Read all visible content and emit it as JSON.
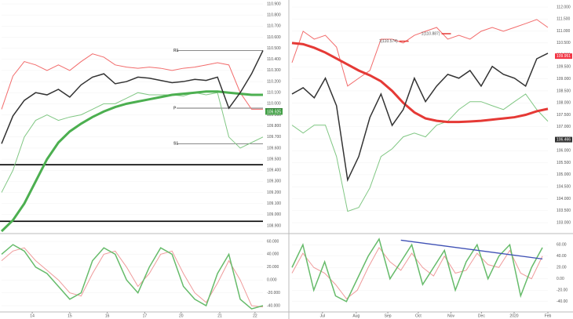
{
  "chart_data": [
    {
      "type": "line",
      "x": [
        0,
        1,
        2,
        3,
        4,
        5,
        6,
        7,
        8,
        9,
        10,
        11,
        12,
        13,
        14,
        15,
        16,
        17,
        18,
        19,
        20,
        21,
        22,
        23
      ],
      "xlim": [
        0,
        23
      ],
      "ylim": [
        108.9,
        110.9
      ],
      "yticks": [
        {
          "value": 110.9,
          "label": "110.900"
        },
        {
          "value": 110.8,
          "label": "110.800"
        },
        {
          "value": 110.7,
          "label": "110.700"
        },
        {
          "value": 110.6,
          "label": "110.600"
        },
        {
          "value": 110.5,
          "label": "110.500"
        },
        {
          "value": 110.4,
          "label": "110.400"
        },
        {
          "value": 110.3,
          "label": "110.300"
        },
        {
          "value": 110.2,
          "label": "110.200"
        },
        {
          "value": 110.1,
          "label": "110.100"
        },
        {
          "value": 110,
          "label": "110.000"
        },
        {
          "value": 109.9,
          "label": "109.900"
        },
        {
          "value": 109.8,
          "label": "109.800"
        },
        {
          "value": 109.7,
          "label": "109.700"
        },
        {
          "value": 109.6,
          "label": "109.600"
        },
        {
          "value": 109.5,
          "label": "109.500"
        },
        {
          "value": 109.4,
          "label": "109.400"
        },
        {
          "value": 109.3,
          "label": "109.300"
        },
        {
          "value": 109.2,
          "label": "109.200"
        },
        {
          "value": 109.1,
          "label": "109.100"
        },
        {
          "value": 109,
          "label": "109.000"
        },
        {
          "value": 108.9,
          "label": "108.900"
        }
      ],
      "series": [
        {
          "color": "#f26b6b",
          "width": 1,
          "values": [
            109.95,
            110.25,
            110.38,
            110.35,
            110.3,
            110.35,
            110.3,
            110.38,
            110.45,
            110.42,
            110.35,
            110.33,
            110.32,
            110.33,
            110.32,
            110.3,
            110.32,
            110.33,
            110.35,
            110.37,
            110.35,
            110.1,
            109.95,
            109.95
          ]
        },
        {
          "color": "#81c784",
          "width": 1,
          "values": [
            109.2,
            109.4,
            109.7,
            109.85,
            109.9,
            109.85,
            109.88,
            109.9,
            109.95,
            110.0,
            110.0,
            110.05,
            110.1,
            110.08,
            110.08,
            110.08,
            110.07,
            110.1,
            110.08,
            110.1,
            109.7,
            109.6,
            109.65,
            109.7
          ]
        },
        {
          "color": "#4caf50",
          "width": 3,
          "values": [
            108.85,
            108.95,
            109.1,
            109.3,
            109.5,
            109.65,
            109.75,
            109.82,
            109.88,
            109.93,
            109.97,
            110.0,
            110.02,
            110.04,
            110.06,
            110.08,
            110.09,
            110.1,
            110.11,
            110.11,
            110.1,
            110.09,
            110.08,
            110.08
          ]
        },
        {
          "color": "#333333",
          "width": 1.5,
          "values": [
            109.64,
            109.89,
            110.03,
            110.1,
            110.08,
            110.13,
            110.06,
            110.17,
            110.24,
            110.27,
            110.18,
            110.2,
            110.24,
            110.23,
            110.21,
            110.19,
            110.2,
            110.22,
            110.21,
            110.24,
            109.96,
            110.1,
            110.27,
            110.48
          ]
        }
      ],
      "levels": [
        {
          "value": 110.48,
          "label": "R1"
        },
        {
          "value": 109.96,
          "label": "P"
        },
        {
          "value": 109.64,
          "label": "S1"
        }
      ],
      "hlines": [
        109.45,
        108.94
      ],
      "markers": [
        {
          "value": 109.935,
          "color": "#2e7d32"
        },
        {
          "value": 109.925,
          "color": "#43a047"
        }
      ]
    },
    {
      "type": "line",
      "x": [
        0,
        1,
        2,
        3,
        4,
        5,
        6,
        7,
        8,
        9,
        10,
        11,
        12,
        13,
        14,
        15,
        16,
        17,
        18,
        19,
        20,
        21,
        22,
        23
      ],
      "xlim": [
        0,
        23
      ],
      "ylim": [
        103,
        112
      ],
      "yticks": [
        {
          "value": 112,
          "label": "112.000"
        },
        {
          "value": 111.5,
          "label": "111.500"
        },
        {
          "value": 111,
          "label": "111.000"
        },
        {
          "value": 110.5,
          "label": "110.500"
        },
        {
          "value": 110,
          "label": "110.000"
        },
        {
          "value": 109.5,
          "label": "109.500"
        },
        {
          "value": 109,
          "label": "109.000"
        },
        {
          "value": 108.5,
          "label": "108.500"
        },
        {
          "value": 108,
          "label": "108.000"
        },
        {
          "value": 107.5,
          "label": "107.500"
        },
        {
          "value": 107,
          "label": "107.000"
        },
        {
          "value": 106.5,
          "label": "106.500"
        },
        {
          "value": 106,
          "label": "106.000"
        },
        {
          "value": 105.5,
          "label": "105.500"
        },
        {
          "value": 105,
          "label": "105.000"
        },
        {
          "value": 104.5,
          "label": "104.500"
        },
        {
          "value": 104,
          "label": "104.000"
        },
        {
          "value": 103.5,
          "label": "103.500"
        },
        {
          "value": 103,
          "label": "103.000"
        }
      ],
      "series": [
        {
          "color": "#f26b6b",
          "width": 1,
          "values": [
            109.68,
            110.99,
            110.66,
            110.82,
            110.33,
            108.7,
            109.03,
            109.35,
            110.66,
            110.66,
            110.5,
            110.82,
            110.99,
            111.15,
            110.66,
            110.82,
            110.66,
            110.99,
            111.15,
            110.99,
            111.15,
            111.31,
            111.48,
            111.15
          ]
        },
        {
          "color": "#81c784",
          "width": 1,
          "values": [
            107.07,
            106.74,
            107.07,
            107.07,
            105.76,
            103.47,
            103.63,
            104.45,
            105.76,
            106.08,
            106.58,
            106.74,
            106.58,
            107.07,
            107.23,
            107.72,
            108.05,
            108.05,
            107.88,
            107.72,
            108.05,
            108.37,
            107.72,
            107.23
          ]
        },
        {
          "color": "#e53935",
          "width": 3,
          "values": [
            110.5,
            110.45,
            110.3,
            110.1,
            109.85,
            109.6,
            109.35,
            109.15,
            108.9,
            108.5,
            108.0,
            107.6,
            107.35,
            107.25,
            107.2,
            107.2,
            107.22,
            107.25,
            107.3,
            107.35,
            107.4,
            107.5,
            107.65,
            107.75
          ]
        },
        {
          "color": "#333333",
          "width": 1.5,
          "values": [
            108.37,
            108.63,
            108.21,
            109.03,
            107.88,
            104.78,
            105.76,
            107.39,
            108.37,
            107.06,
            107.72,
            109.03,
            108.05,
            108.7,
            109.19,
            109.03,
            109.35,
            108.7,
            109.52,
            109.19,
            109.03,
            108.7,
            109.84,
            110.07
          ]
        }
      ],
      "annotations": [
        {
          "text": "1(110.574)",
          "x": 9.5,
          "y": 110.574
        },
        {
          "text": "1(110.887)",
          "x": 13.3,
          "y": 110.887
        }
      ],
      "markers": [
        {
          "value": 109.951,
          "color": "#f23645"
        },
        {
          "value": 106.466,
          "color": "#333333"
        }
      ]
    },
    {
      "type": "line",
      "x": [
        0,
        1,
        2,
        3,
        4,
        5,
        6,
        7,
        8,
        9,
        10,
        11,
        12,
        13,
        14,
        15,
        16,
        17,
        18,
        19,
        20,
        21,
        22,
        23
      ],
      "xlim": [
        0,
        23
      ],
      "ylim": [
        -40,
        60
      ],
      "yticks": [
        {
          "value": 60,
          "label": "60.000"
        },
        {
          "value": 40,
          "label": "40.000"
        },
        {
          "value": 20,
          "label": "20.000"
        },
        {
          "value": 0,
          "label": "0.000"
        },
        {
          "value": -20,
          "label": "-20.000"
        },
        {
          "value": -40,
          "label": "-40.000"
        }
      ],
      "xticks": [
        {
          "value": 2.7,
          "label": "14"
        },
        {
          "value": 6,
          "label": "15"
        },
        {
          "value": 9.3,
          "label": "16"
        },
        {
          "value": 12.6,
          "label": "17"
        },
        {
          "value": 15.8,
          "label": "20"
        },
        {
          "value": 19.2,
          "label": "21"
        },
        {
          "value": 22.3,
          "label": "22"
        }
      ],
      "series": [
        {
          "color": "#ef9a9a",
          "width": 1,
          "values": [
            30,
            45,
            50,
            30,
            15,
            0,
            -20,
            -25,
            10,
            40,
            45,
            20,
            -10,
            10,
            40,
            45,
            10,
            -20,
            -35,
            -5,
            30,
            0,
            -40,
            -42
          ]
        },
        {
          "color": "#66bb6a",
          "width": 1.5,
          "values": [
            40,
            55,
            45,
            20,
            10,
            -10,
            -30,
            -20,
            30,
            50,
            40,
            0,
            -20,
            20,
            50,
            40,
            -10,
            -30,
            -40,
            10,
            40,
            -30,
            -45,
            -40
          ]
        }
      ]
    },
    {
      "type": "line",
      "x": [
        0,
        1,
        2,
        3,
        4,
        5,
        6,
        7,
        8,
        9,
        10,
        11,
        12,
        13,
        14,
        15,
        16,
        17,
        18,
        19,
        20,
        21,
        22,
        23
      ],
      "xlim": [
        0,
        23.5
      ],
      "ylim": [
        -50,
        70
      ],
      "yticks": [
        {
          "value": 60,
          "label": "60.00"
        },
        {
          "value": 40,
          "label": "40.00"
        },
        {
          "value": 20,
          "label": "20.00"
        },
        {
          "value": 0,
          "label": "0.00"
        },
        {
          "value": -20,
          "label": "-20.00"
        },
        {
          "value": -40,
          "label": "-40.00"
        }
      ],
      "xticks": [
        {
          "value": 2.8,
          "label": "Jul"
        },
        {
          "value": 5.9,
          "label": "Aug"
        },
        {
          "value": 8.8,
          "label": "Sep"
        },
        {
          "value": 11.6,
          "label": "Oct"
        },
        {
          "value": 14.6,
          "label": "Nov"
        },
        {
          "value": 17.4,
          "label": "Dec"
        },
        {
          "value": 20.4,
          "label": "2020"
        },
        {
          "value": 23.5,
          "label": "Feb"
        }
      ],
      "series": [
        {
          "color": "#ef9a9a",
          "width": 1,
          "values": [
            10,
            45,
            20,
            10,
            -10,
            -35,
            -20,
            20,
            55,
            30,
            15,
            45,
            20,
            5,
            40,
            10,
            15,
            45,
            25,
            20,
            50,
            10,
            0,
            40
          ]
        },
        {
          "color": "#66bb6a",
          "width": 1.5,
          "values": [
            20,
            60,
            -20,
            30,
            -30,
            -40,
            0,
            40,
            70,
            0,
            30,
            60,
            -10,
            20,
            50,
            -20,
            30,
            60,
            0,
            40,
            60,
            -30,
            20,
            55
          ]
        }
      ],
      "trendline": {
        "x": [
          10,
          23
        ],
        "y": [
          68,
          35
        ],
        "color": "#3f51b5"
      }
    }
  ]
}
